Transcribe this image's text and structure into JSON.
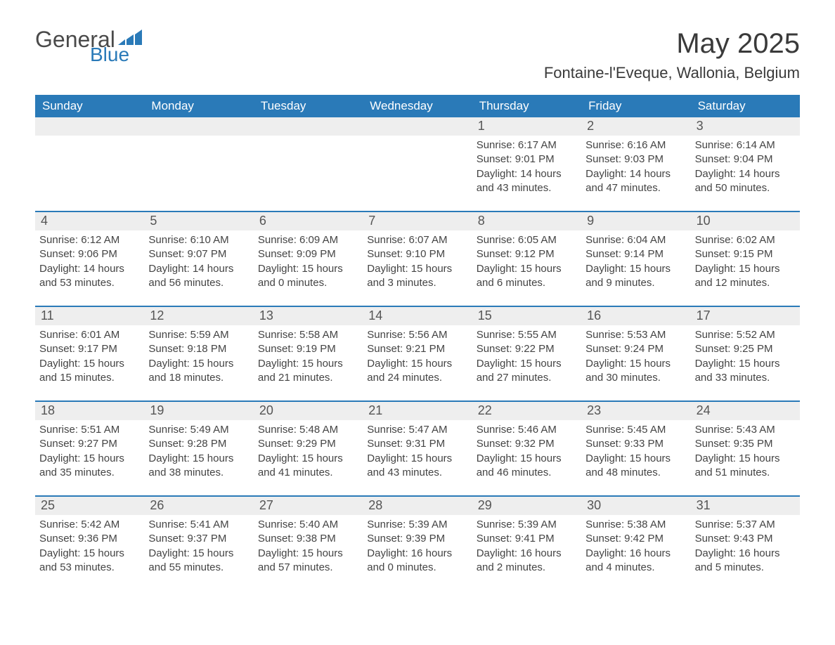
{
  "logo": {
    "general": "General",
    "blue": "Blue"
  },
  "title": "May 2025",
  "location": "Fontaine-l'Eveque, Wallonia, Belgium",
  "colors": {
    "brand_blue": "#2a7ab8",
    "header_text": "#ffffff",
    "daynum_bg": "#eeeeee",
    "text": "#444444",
    "logo_gray": "#4a4a4a"
  },
  "dayNames": [
    "Sunday",
    "Monday",
    "Tuesday",
    "Wednesday",
    "Thursday",
    "Friday",
    "Saturday"
  ],
  "weeks": [
    [
      {
        "n": "",
        "sunrise": "",
        "sunset": "",
        "daylight": ""
      },
      {
        "n": "",
        "sunrise": "",
        "sunset": "",
        "daylight": ""
      },
      {
        "n": "",
        "sunrise": "",
        "sunset": "",
        "daylight": ""
      },
      {
        "n": "",
        "sunrise": "",
        "sunset": "",
        "daylight": ""
      },
      {
        "n": "1",
        "sunrise": "Sunrise: 6:17 AM",
        "sunset": "Sunset: 9:01 PM",
        "daylight": "Daylight: 14 hours and 43 minutes."
      },
      {
        "n": "2",
        "sunrise": "Sunrise: 6:16 AM",
        "sunset": "Sunset: 9:03 PM",
        "daylight": "Daylight: 14 hours and 47 minutes."
      },
      {
        "n": "3",
        "sunrise": "Sunrise: 6:14 AM",
        "sunset": "Sunset: 9:04 PM",
        "daylight": "Daylight: 14 hours and 50 minutes."
      }
    ],
    [
      {
        "n": "4",
        "sunrise": "Sunrise: 6:12 AM",
        "sunset": "Sunset: 9:06 PM",
        "daylight": "Daylight: 14 hours and 53 minutes."
      },
      {
        "n": "5",
        "sunrise": "Sunrise: 6:10 AM",
        "sunset": "Sunset: 9:07 PM",
        "daylight": "Daylight: 14 hours and 56 minutes."
      },
      {
        "n": "6",
        "sunrise": "Sunrise: 6:09 AM",
        "sunset": "Sunset: 9:09 PM",
        "daylight": "Daylight: 15 hours and 0 minutes."
      },
      {
        "n": "7",
        "sunrise": "Sunrise: 6:07 AM",
        "sunset": "Sunset: 9:10 PM",
        "daylight": "Daylight: 15 hours and 3 minutes."
      },
      {
        "n": "8",
        "sunrise": "Sunrise: 6:05 AM",
        "sunset": "Sunset: 9:12 PM",
        "daylight": "Daylight: 15 hours and 6 minutes."
      },
      {
        "n": "9",
        "sunrise": "Sunrise: 6:04 AM",
        "sunset": "Sunset: 9:14 PM",
        "daylight": "Daylight: 15 hours and 9 minutes."
      },
      {
        "n": "10",
        "sunrise": "Sunrise: 6:02 AM",
        "sunset": "Sunset: 9:15 PM",
        "daylight": "Daylight: 15 hours and 12 minutes."
      }
    ],
    [
      {
        "n": "11",
        "sunrise": "Sunrise: 6:01 AM",
        "sunset": "Sunset: 9:17 PM",
        "daylight": "Daylight: 15 hours and 15 minutes."
      },
      {
        "n": "12",
        "sunrise": "Sunrise: 5:59 AM",
        "sunset": "Sunset: 9:18 PM",
        "daylight": "Daylight: 15 hours and 18 minutes."
      },
      {
        "n": "13",
        "sunrise": "Sunrise: 5:58 AM",
        "sunset": "Sunset: 9:19 PM",
        "daylight": "Daylight: 15 hours and 21 minutes."
      },
      {
        "n": "14",
        "sunrise": "Sunrise: 5:56 AM",
        "sunset": "Sunset: 9:21 PM",
        "daylight": "Daylight: 15 hours and 24 minutes."
      },
      {
        "n": "15",
        "sunrise": "Sunrise: 5:55 AM",
        "sunset": "Sunset: 9:22 PM",
        "daylight": "Daylight: 15 hours and 27 minutes."
      },
      {
        "n": "16",
        "sunrise": "Sunrise: 5:53 AM",
        "sunset": "Sunset: 9:24 PM",
        "daylight": "Daylight: 15 hours and 30 minutes."
      },
      {
        "n": "17",
        "sunrise": "Sunrise: 5:52 AM",
        "sunset": "Sunset: 9:25 PM",
        "daylight": "Daylight: 15 hours and 33 minutes."
      }
    ],
    [
      {
        "n": "18",
        "sunrise": "Sunrise: 5:51 AM",
        "sunset": "Sunset: 9:27 PM",
        "daylight": "Daylight: 15 hours and 35 minutes."
      },
      {
        "n": "19",
        "sunrise": "Sunrise: 5:49 AM",
        "sunset": "Sunset: 9:28 PM",
        "daylight": "Daylight: 15 hours and 38 minutes."
      },
      {
        "n": "20",
        "sunrise": "Sunrise: 5:48 AM",
        "sunset": "Sunset: 9:29 PM",
        "daylight": "Daylight: 15 hours and 41 minutes."
      },
      {
        "n": "21",
        "sunrise": "Sunrise: 5:47 AM",
        "sunset": "Sunset: 9:31 PM",
        "daylight": "Daylight: 15 hours and 43 minutes."
      },
      {
        "n": "22",
        "sunrise": "Sunrise: 5:46 AM",
        "sunset": "Sunset: 9:32 PM",
        "daylight": "Daylight: 15 hours and 46 minutes."
      },
      {
        "n": "23",
        "sunrise": "Sunrise: 5:45 AM",
        "sunset": "Sunset: 9:33 PM",
        "daylight": "Daylight: 15 hours and 48 minutes."
      },
      {
        "n": "24",
        "sunrise": "Sunrise: 5:43 AM",
        "sunset": "Sunset: 9:35 PM",
        "daylight": "Daylight: 15 hours and 51 minutes."
      }
    ],
    [
      {
        "n": "25",
        "sunrise": "Sunrise: 5:42 AM",
        "sunset": "Sunset: 9:36 PM",
        "daylight": "Daylight: 15 hours and 53 minutes."
      },
      {
        "n": "26",
        "sunrise": "Sunrise: 5:41 AM",
        "sunset": "Sunset: 9:37 PM",
        "daylight": "Daylight: 15 hours and 55 minutes."
      },
      {
        "n": "27",
        "sunrise": "Sunrise: 5:40 AM",
        "sunset": "Sunset: 9:38 PM",
        "daylight": "Daylight: 15 hours and 57 minutes."
      },
      {
        "n": "28",
        "sunrise": "Sunrise: 5:39 AM",
        "sunset": "Sunset: 9:39 PM",
        "daylight": "Daylight: 16 hours and 0 minutes."
      },
      {
        "n": "29",
        "sunrise": "Sunrise: 5:39 AM",
        "sunset": "Sunset: 9:41 PM",
        "daylight": "Daylight: 16 hours and 2 minutes."
      },
      {
        "n": "30",
        "sunrise": "Sunrise: 5:38 AM",
        "sunset": "Sunset: 9:42 PM",
        "daylight": "Daylight: 16 hours and 4 minutes."
      },
      {
        "n": "31",
        "sunrise": "Sunrise: 5:37 AM",
        "sunset": "Sunset: 9:43 PM",
        "daylight": "Daylight: 16 hours and 5 minutes."
      }
    ]
  ]
}
